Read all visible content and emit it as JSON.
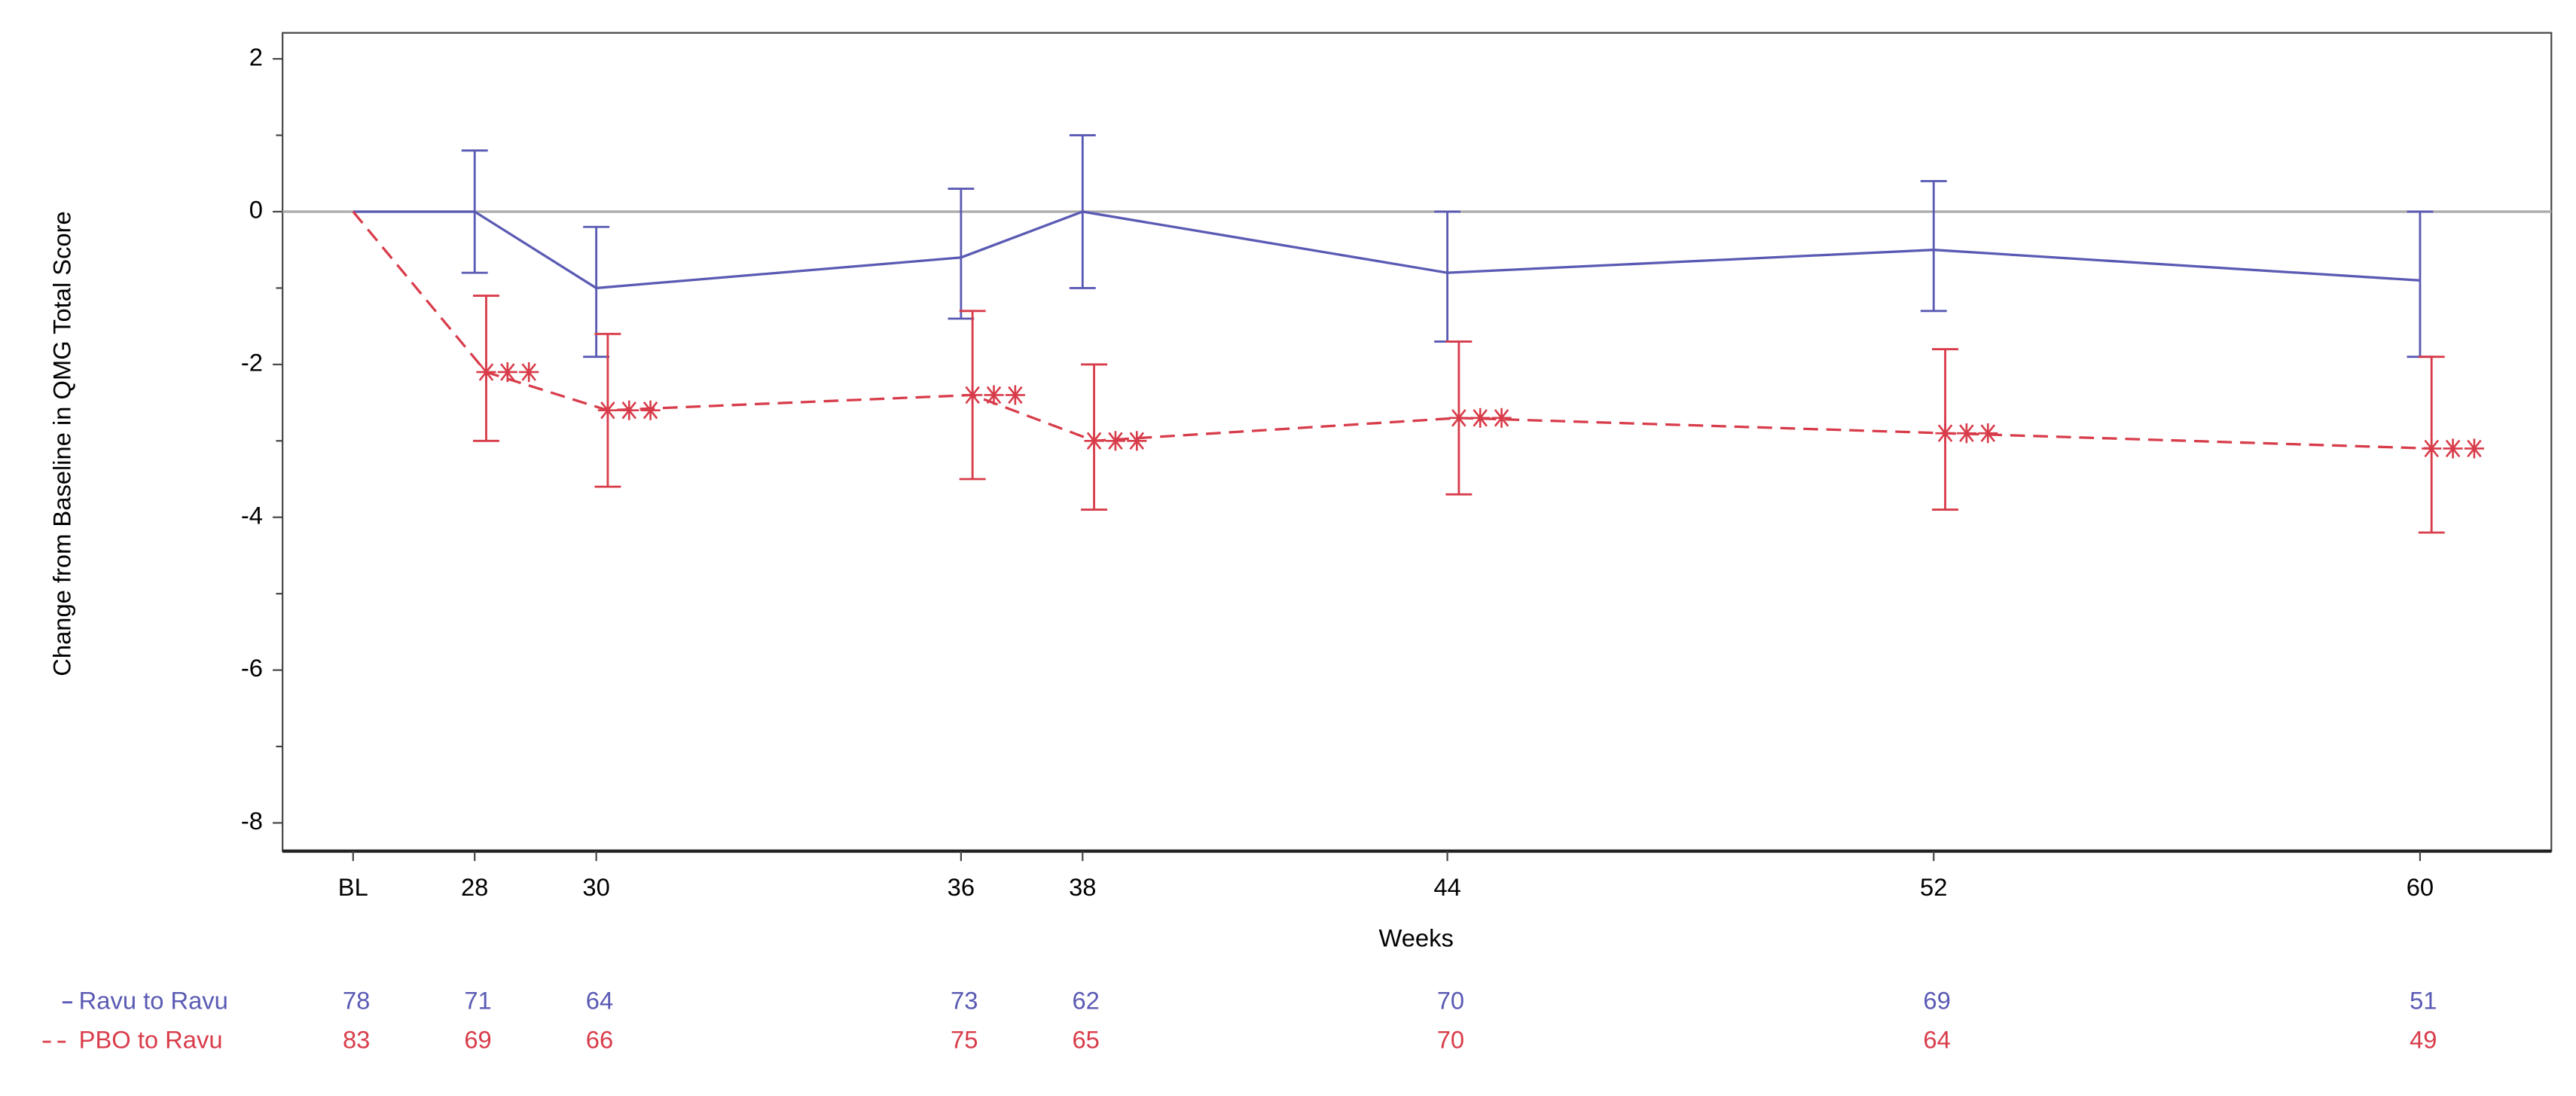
{
  "chart_data": {
    "type": "line",
    "x_label": "Weeks",
    "y_label": "Change from Baseline in QMG Total Score",
    "x": [
      26,
      28,
      30,
      36,
      38,
      44,
      52,
      60
    ],
    "xlim": [
      24.84,
      62.16
    ],
    "xticks": [
      {
        "value": 26,
        "label": "BL"
      },
      28,
      30,
      36,
      38,
      44,
      52,
      60
    ],
    "ylim": [
      -8.37,
      2.34
    ],
    "yticks": [
      -8,
      -6,
      -4,
      -2,
      0,
      2
    ],
    "reference_line": 0,
    "series": [
      {
        "name": "Ravu to Ravu",
        "color": "#5a5ab4",
        "dash": false,
        "values": [
          0,
          0,
          -1.0,
          -0.6,
          0,
          -0.8,
          -0.5,
          -0.9
        ],
        "lower": [
          null,
          -0.8,
          -1.9,
          -1.4,
          -1.0,
          -1.7,
          -1.3,
          -1.9
        ],
        "upper": [
          null,
          0.8,
          -0.2,
          0.3,
          1.0,
          0,
          0.4,
          0
        ],
        "n": [
          78,
          71,
          64,
          73,
          62,
          70,
          69,
          51
        ]
      },
      {
        "name": "PBO to Ravu",
        "color": "#d83c4a",
        "dash": true,
        "values": [
          0,
          -2.1,
          -2.6,
          -2.4,
          -3.0,
          -2.7,
          -2.9,
          -3.1
        ],
        "lower": [
          null,
          -3.0,
          -3.6,
          -3.5,
          -3.9,
          -3.7,
          -3.9,
          -4.2
        ],
        "upper": [
          null,
          -1.1,
          -1.6,
          -1.3,
          -2.0,
          -1.7,
          -1.8,
          -1.9
        ],
        "n": [
          83,
          69,
          66,
          75,
          65,
          70,
          64,
          49
        ]
      }
    ]
  }
}
